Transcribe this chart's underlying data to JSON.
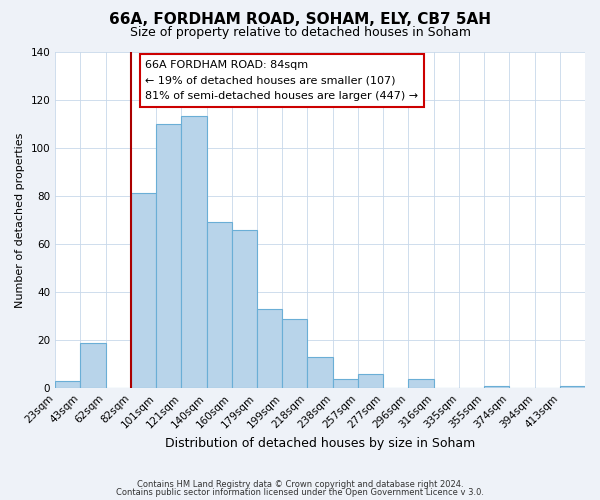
{
  "title": "66A, FORDHAM ROAD, SOHAM, ELY, CB7 5AH",
  "subtitle": "Size of property relative to detached houses in Soham",
  "xlabel": "Distribution of detached houses by size in Soham",
  "ylabel": "Number of detached properties",
  "bin_labels": [
    "23sqm",
    "43sqm",
    "62sqm",
    "82sqm",
    "101sqm",
    "121sqm",
    "140sqm",
    "160sqm",
    "179sqm",
    "199sqm",
    "218sqm",
    "238sqm",
    "257sqm",
    "277sqm",
    "296sqm",
    "316sqm",
    "335sqm",
    "355sqm",
    "374sqm",
    "394sqm",
    "413sqm"
  ],
  "bar_heights": [
    3,
    19,
    0,
    81,
    110,
    113,
    69,
    66,
    33,
    29,
    13,
    4,
    6,
    0,
    4,
    0,
    0,
    1,
    0,
    0,
    1
  ],
  "bar_color": "#b8d4ea",
  "bar_edge_color": "#6aaed6",
  "vline_x_index": 3,
  "vline_color": "#aa0000",
  "property_label": "66A FORDHAM ROAD: 84sqm",
  "annotation_line1": "← 19% of detached houses are smaller (107)",
  "annotation_line2": "81% of semi-detached houses are larger (447) →",
  "footer1": "Contains HM Land Registry data © Crown copyright and database right 2024.",
  "footer2": "Contains public sector information licensed under the Open Government Licence v 3.0.",
  "ylim": [
    0,
    140
  ],
  "yticks": [
    0,
    20,
    40,
    60,
    80,
    100,
    120,
    140
  ],
  "background_color": "#eef2f8",
  "plot_bg_color": "#ffffff",
  "grid_color": "#c8d8ea",
  "annotation_box_edge_color": "#cc0000",
  "title_fontsize": 11,
  "subtitle_fontsize": 9,
  "xlabel_fontsize": 9,
  "ylabel_fontsize": 8,
  "tick_fontsize": 7.5,
  "annotation_fontsize": 8
}
